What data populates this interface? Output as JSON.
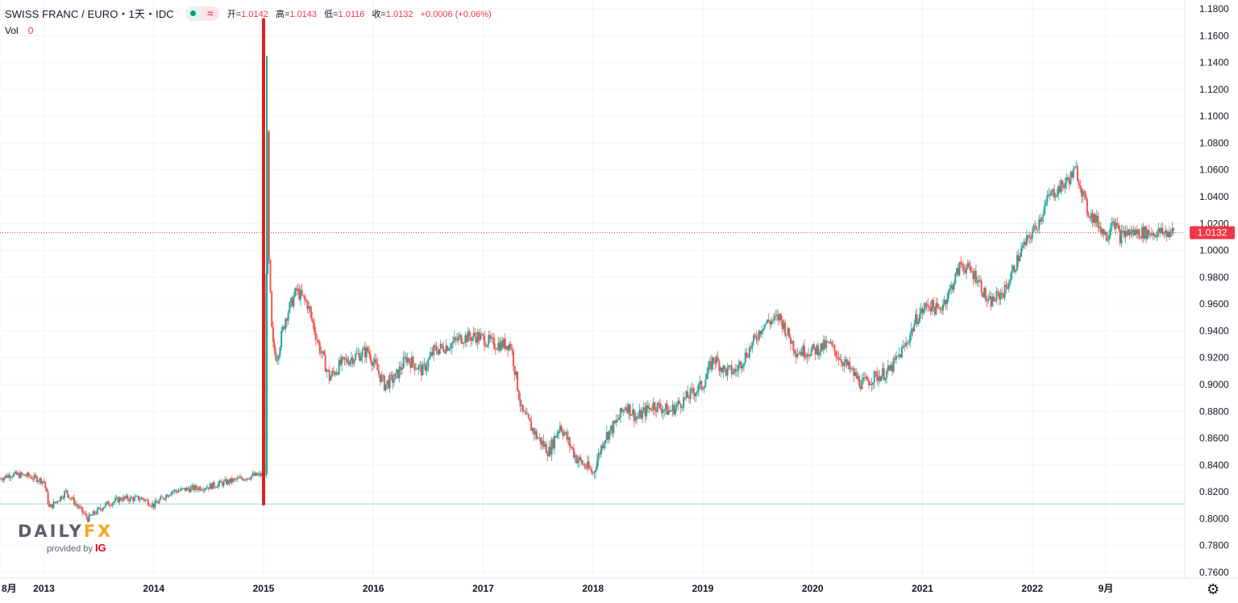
{
  "header": {
    "symbol": "SWISS FRANC / EURO・1天・IDC",
    "pill_icon_left": "dot-icon",
    "pill_icon_right": "approx-icon",
    "pill_glyph": "≈",
    "ohlc": [
      {
        "label": "开=",
        "value": "1.0142"
      },
      {
        "label": "高=",
        "value": "1.0143"
      },
      {
        "label": "低=",
        "value": "1.0116"
      },
      {
        "label": "收=",
        "value": "1.0132"
      }
    ],
    "change": "+0.0006 (+0.06%)"
  },
  "volume": {
    "label": "Vol",
    "value": "0"
  },
  "logo": {
    "brand_left": "DAILY",
    "brand_right": "FX",
    "provided": "provided by",
    "provider": "IG"
  },
  "settings_icon": "gear-icon",
  "settings_glyph": "⚙",
  "colors": {
    "up": "#26a69a",
    "down": "#ef5350",
    "grid": "#f0f3fa",
    "axis_text": "#131722",
    "annotation": "#e0201f",
    "price_tag": "#f23645",
    "baseline": "#a5d6c3"
  },
  "chart_data": {
    "type": "candlestick",
    "title": "SWISS FRANC / EURO・1天・IDC",
    "last_price": "1.0132",
    "ylim": [
      0.76,
      1.18
    ],
    "y_ticks": [
      "1.1800",
      "1.1600",
      "1.1400",
      "1.1200",
      "1.1000",
      "1.0800",
      "1.0600",
      "1.0400",
      "1.0200",
      "1.0000",
      "0.9800",
      "0.9600",
      "0.9400",
      "0.9200",
      "0.9000",
      "0.8800",
      "0.8600",
      "0.8400",
      "0.8200",
      "0.8000",
      "0.7800",
      "0.7600"
    ],
    "x_ticks": [
      "8月",
      "2013",
      "2014",
      "2015",
      "2016",
      "2017",
      "2018",
      "2019",
      "2020",
      "2021",
      "2022",
      "9月"
    ],
    "xlim": [
      2012.6,
      2023.36
    ],
    "x_tick_positions": [
      2012.6,
      2013.0,
      2014.0,
      2015.0,
      2016.0,
      2017.0,
      2018.0,
      2019.0,
      2020.0,
      2021.0,
      2022.0,
      2022.67
    ],
    "series": [
      {
        "x": [
          2012.6,
          2012.7,
          2012.85,
          2013.0,
          2013.05,
          2013.2,
          2013.4,
          2013.55,
          2013.7,
          2013.9,
          2014.0,
          2014.15,
          2014.3,
          2014.5,
          2014.7,
          2014.9,
          2015.02,
          2015.03,
          2015.05,
          2015.08,
          2015.12,
          2015.2,
          2015.3,
          2015.4,
          2015.5,
          2015.6,
          2015.7,
          2015.8,
          2015.95,
          2016.1,
          2016.2,
          2016.3,
          2016.45,
          2016.55,
          2016.7,
          2016.8,
          2016.95,
          2017.1,
          2017.25,
          2017.35,
          2017.5,
          2017.6,
          2017.7,
          2017.85,
          2018.0,
          2018.1,
          2018.2,
          2018.3,
          2018.4,
          2018.55,
          2018.7,
          2018.85,
          2019.0,
          2019.1,
          2019.2,
          2019.3,
          2019.45,
          2019.55,
          2019.7,
          2019.85,
          2020.0,
          2020.15,
          2020.25,
          2020.35,
          2020.45,
          2020.55,
          2020.7,
          2020.85,
          2020.95,
          2021.05,
          2021.15,
          2021.25,
          2021.35,
          2021.5,
          2021.6,
          2021.75,
          2021.9,
          2022.05,
          2022.15,
          2022.3,
          2022.4,
          2022.5,
          2022.6,
          2022.68,
          2022.73,
          2022.8,
          2022.85,
          2022.95,
          2023.05,
          2023.15,
          2023.25,
          2023.3
        ],
        "y": [
          0.83,
          0.833,
          0.832,
          0.828,
          0.808,
          0.82,
          0.8,
          0.81,
          0.815,
          0.815,
          0.81,
          0.82,
          0.822,
          0.824,
          0.828,
          0.832,
          0.833,
          1.14,
          0.99,
          0.93,
          0.92,
          0.95,
          0.97,
          0.96,
          0.93,
          0.905,
          0.915,
          0.92,
          0.925,
          0.9,
          0.905,
          0.92,
          0.91,
          0.925,
          0.93,
          0.935,
          0.936,
          0.93,
          0.93,
          0.88,
          0.86,
          0.85,
          0.87,
          0.845,
          0.834,
          0.86,
          0.87,
          0.885,
          0.875,
          0.885,
          0.88,
          0.89,
          0.9,
          0.92,
          0.91,
          0.91,
          0.93,
          0.945,
          0.95,
          0.925,
          0.925,
          0.93,
          0.92,
          0.91,
          0.9,
          0.905,
          0.91,
          0.93,
          0.95,
          0.96,
          0.955,
          0.97,
          0.99,
          0.98,
          0.96,
          0.97,
          1.0,
          1.02,
          1.04,
          1.05,
          1.06,
          1.03,
          1.02,
          1.01,
          1.025,
          1.01,
          1.0132,
          1.0132,
          1.0132,
          1.0132,
          1.0132,
          1.0132
        ]
      }
    ],
    "annotations": [
      {
        "type": "vertical-line",
        "x": 2015.0,
        "from": 0.811,
        "to": 1.172,
        "color": "#e0201f"
      },
      {
        "type": "horizontal-line",
        "y": 0.811,
        "color": "#a5d6c3"
      },
      {
        "type": "horizontal-line",
        "y": 1.0132,
        "color": "#f23645",
        "dotted": true
      }
    ]
  }
}
